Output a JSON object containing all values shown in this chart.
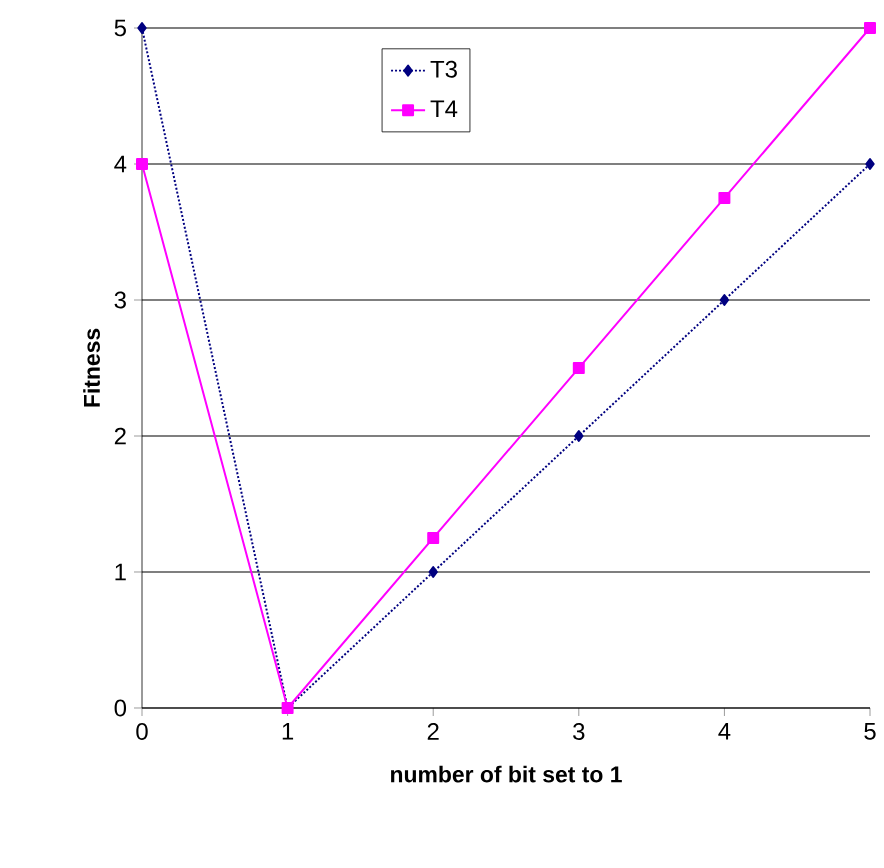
{
  "chart_data": {
    "type": "line",
    "xlabel": "number of bit set to 1",
    "ylabel": "Fitness",
    "x": [
      0,
      1,
      2,
      3,
      4,
      5
    ],
    "xlim": [
      0,
      5
    ],
    "ylim": [
      0,
      5
    ],
    "xticks": [
      0,
      1,
      2,
      3,
      4,
      5
    ],
    "yticks": [
      0,
      1,
      2,
      3,
      4,
      5
    ],
    "grid": "y",
    "legend": "top",
    "series": [
      {
        "name": "T3",
        "color": "#000080",
        "values": [
          5,
          0,
          1,
          2,
          3,
          4
        ],
        "marker": "diamond",
        "line_style": "dotted"
      },
      {
        "name": "T4",
        "color": "#ff00ff",
        "values": [
          4,
          0,
          1.25,
          2.5,
          3.75,
          5
        ],
        "marker": "square",
        "line_style": "solid"
      }
    ]
  }
}
